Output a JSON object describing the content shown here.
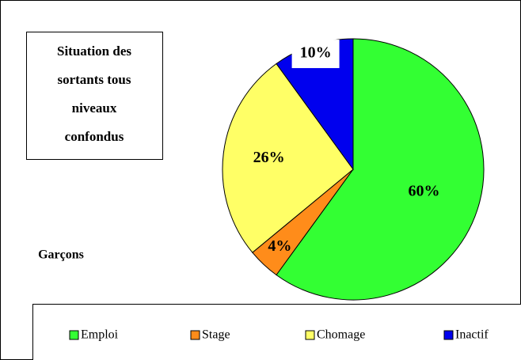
{
  "chart_data": {
    "type": "pie",
    "title": [
      "Situation des",
      "sortants tous",
      "niveaux",
      "confondus"
    ],
    "annotation": "Garçons",
    "categories": [
      "Emploi",
      "Stage",
      "Chomage",
      "Inactif"
    ],
    "values": [
      60,
      4,
      26,
      10
    ],
    "value_labels": [
      "60%",
      "4%",
      "26%",
      "10%"
    ],
    "colors": [
      "#33ff33",
      "#ff8c1a",
      "#ffff66",
      "#0000ee"
    ],
    "legend": "bottom"
  }
}
